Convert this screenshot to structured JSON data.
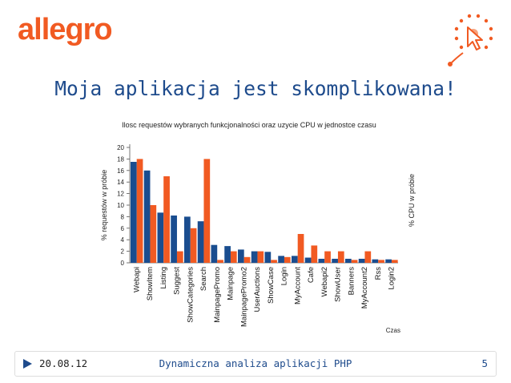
{
  "logo": {
    "text": "allegro"
  },
  "slide": {
    "title": "Moja aplikacja jest skomplikowana!"
  },
  "footer": {
    "date": "20.08.12",
    "center": "Dynamiczna analiza aplikacji PHP",
    "page": "5"
  },
  "colors": {
    "brand": "#f15a22",
    "series_blue": "#1a4d8f",
    "series_orange": "#f15a22",
    "title_blue": "#1e4b8c",
    "gray": "#888888"
  },
  "icons": {
    "deco": "mouse-cursor-icon",
    "footer": "play-arrow-icon"
  },
  "chart_data": {
    "type": "bar",
    "title": "Ilosc requestów wybranych funkcjonalności oraz uzycie CPU w jednostce czasu",
    "xlabel": "Czas",
    "ylabel": "% requestów w próbie",
    "ylabel_right": "% CPU w próbie",
    "ylim": [
      0,
      20
    ],
    "yticks": [
      0,
      2,
      4,
      6,
      8,
      10,
      12,
      14,
      16,
      18,
      20
    ],
    "grid": false,
    "categories": [
      "Webapi",
      "ShowItem",
      "Listing",
      "Suggest",
      "ShowCategories",
      "Search",
      "MainpagePromo",
      "Mainpage",
      "MainpagePromo2",
      "UserAuctions",
      "ShowCase",
      "Login",
      "MyAccount",
      "Cafe",
      "Webapi2",
      "ShowUser",
      "Banners",
      "MyAccount2",
      "Rss",
      "Login2"
    ],
    "series": [
      {
        "name": "% requestów w próbie",
        "values": [
          17.5,
          16,
          8.7,
          8.2,
          8,
          7.2,
          3.1,
          2.9,
          2.3,
          2,
          1.9,
          1.2,
          1.2,
          0.9,
          0.7,
          0.7,
          0.7,
          0.7,
          0.6,
          0.6
        ]
      },
      {
        "name": "% CPU w próbie",
        "values": [
          18,
          10,
          15,
          2,
          6,
          18,
          0.5,
          2,
          1,
          2,
          0.5,
          1,
          5,
          3,
          2,
          2,
          0.5,
          2,
          0.5,
          0.5
        ]
      }
    ]
  }
}
